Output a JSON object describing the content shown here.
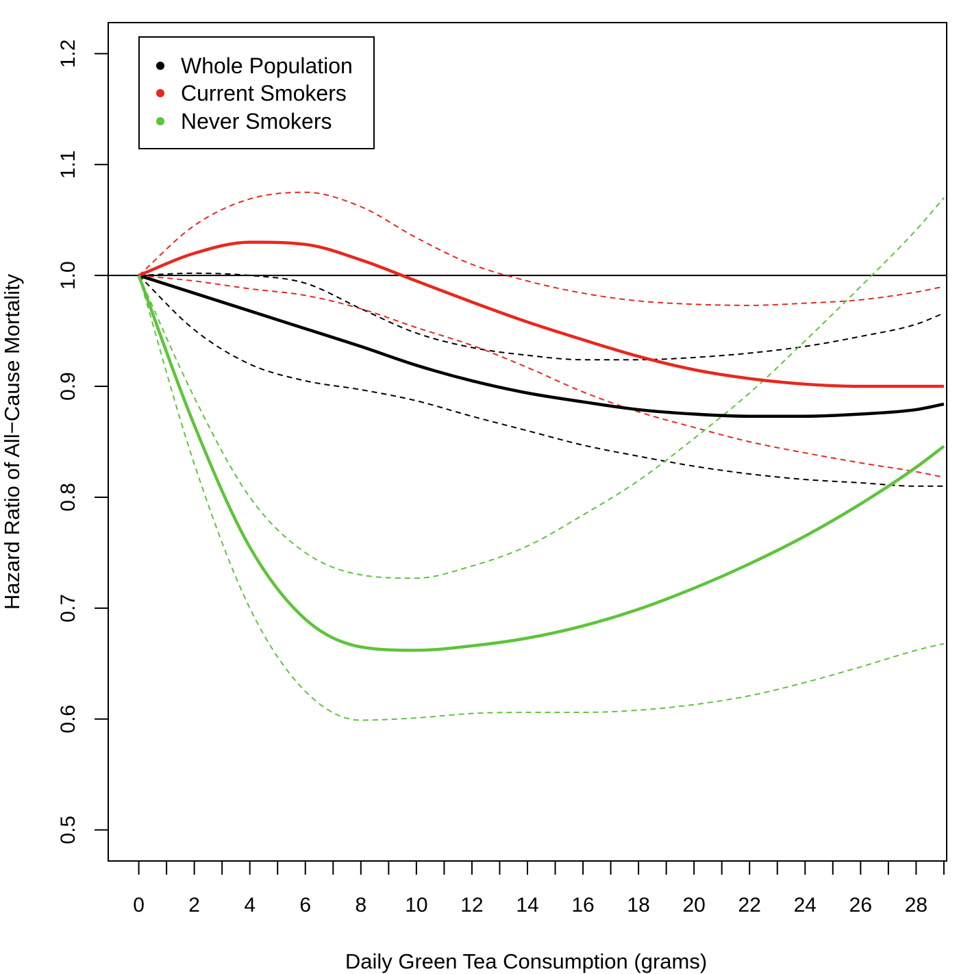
{
  "chart_data": {
    "type": "line",
    "title": "",
    "xlabel": "Daily Green Tea Consumption (grams)",
    "ylabel": "Hazard Ratio of All−Cause Mortality",
    "xlim": [
      -1.1,
      29.1
    ],
    "ylim": [
      0.472,
      1.228
    ],
    "x_major_ticks": [
      0,
      2,
      4,
      6,
      8,
      10,
      12,
      14,
      16,
      18,
      20,
      22,
      24,
      26,
      28
    ],
    "x_major_tick_labels": [
      "0",
      "2",
      "4",
      "6",
      "8",
      "10",
      "12",
      "14",
      "16",
      "18",
      "20",
      "22",
      "24",
      "26",
      "28"
    ],
    "x_minor_ticks": [
      1,
      3,
      5,
      7,
      9,
      11,
      13,
      15,
      17,
      19,
      21,
      23,
      25,
      27,
      29
    ],
    "y_ticks": [
      0.5,
      0.6,
      0.7,
      0.8,
      0.9,
      1.0,
      1.1,
      1.2
    ],
    "y_tick_labels": [
      "0.5",
      "0.6",
      "0.7",
      "0.8",
      "0.9",
      "1.0",
      "1.1",
      "1.2"
    ],
    "reference_line": {
      "y": 1.0,
      "color": "#000000"
    },
    "legend": {
      "position": "top-left",
      "entries": [
        {
          "label": "Whole Population",
          "color": "#000000"
        },
        {
          "label": "Current Smokers",
          "color": "#e8281e"
        },
        {
          "label": "Never Smokers",
          "color": "#5ec43a"
        }
      ]
    },
    "x": [
      0,
      2,
      4,
      6,
      8,
      10,
      12,
      14,
      16,
      18,
      20,
      22,
      24,
      26,
      28,
      29
    ],
    "series": [
      {
        "name": "Whole Population",
        "role": "estimate",
        "color": "#000000",
        "dashed": false,
        "values": [
          1.0,
          0.984,
          0.968,
          0.952,
          0.936,
          0.919,
          0.905,
          0.894,
          0.886,
          0.879,
          0.875,
          0.873,
          0.873,
          0.875,
          0.879,
          0.884
        ]
      },
      {
        "name": "Whole Population upper CI",
        "role": "ci",
        "color": "#000000",
        "dashed": true,
        "values": [
          1.0,
          1.002,
          1.0,
          0.993,
          0.97,
          0.948,
          0.935,
          0.928,
          0.924,
          0.924,
          0.926,
          0.93,
          0.936,
          0.945,
          0.956,
          0.966
        ]
      },
      {
        "name": "Whole Population lower CI",
        "role": "ci",
        "color": "#000000",
        "dashed": true,
        "values": [
          1.0,
          0.951,
          0.92,
          0.905,
          0.897,
          0.887,
          0.873,
          0.86,
          0.847,
          0.837,
          0.828,
          0.821,
          0.816,
          0.813,
          0.81,
          0.81
        ]
      },
      {
        "name": "Current Smokers",
        "role": "estimate",
        "color": "#e8281e",
        "dashed": false,
        "values": [
          1.0,
          1.02,
          1.03,
          1.028,
          1.014,
          0.995,
          0.976,
          0.958,
          0.942,
          0.927,
          0.915,
          0.907,
          0.902,
          0.9,
          0.9,
          0.9
        ]
      },
      {
        "name": "Current Smokers upper CI",
        "role": "ci",
        "color": "#e8281e",
        "dashed": true,
        "values": [
          1.0,
          1.045,
          1.069,
          1.075,
          1.062,
          1.034,
          1.01,
          0.995,
          0.984,
          0.977,
          0.974,
          0.973,
          0.975,
          0.978,
          0.985,
          0.99
        ]
      },
      {
        "name": "Current Smokers lower CI",
        "role": "ci",
        "color": "#e8281e",
        "dashed": true,
        "values": [
          1.0,
          0.995,
          0.988,
          0.982,
          0.97,
          0.953,
          0.937,
          0.917,
          0.895,
          0.877,
          0.863,
          0.85,
          0.84,
          0.831,
          0.823,
          0.818
        ]
      },
      {
        "name": "Never Smokers",
        "role": "estimate",
        "color": "#5ec43a",
        "dashed": false,
        "values": [
          1.0,
          0.865,
          0.755,
          0.69,
          0.665,
          0.662,
          0.666,
          0.673,
          0.684,
          0.699,
          0.718,
          0.74,
          0.765,
          0.794,
          0.827,
          0.846
        ]
      },
      {
        "name": "Never Smokers upper CI",
        "role": "ci",
        "color": "#5ec43a",
        "dashed": true,
        "values": [
          1.0,
          0.89,
          0.8,
          0.75,
          0.73,
          0.727,
          0.738,
          0.756,
          0.784,
          0.815,
          0.853,
          0.894,
          0.941,
          0.99,
          1.041,
          1.07
        ]
      },
      {
        "name": "Never Smokers lower CI",
        "role": "ci",
        "color": "#5ec43a",
        "dashed": true,
        "values": [
          1.0,
          0.83,
          0.7,
          0.625,
          0.599,
          0.601,
          0.605,
          0.606,
          0.606,
          0.608,
          0.613,
          0.621,
          0.633,
          0.647,
          0.662,
          0.668
        ]
      }
    ]
  }
}
